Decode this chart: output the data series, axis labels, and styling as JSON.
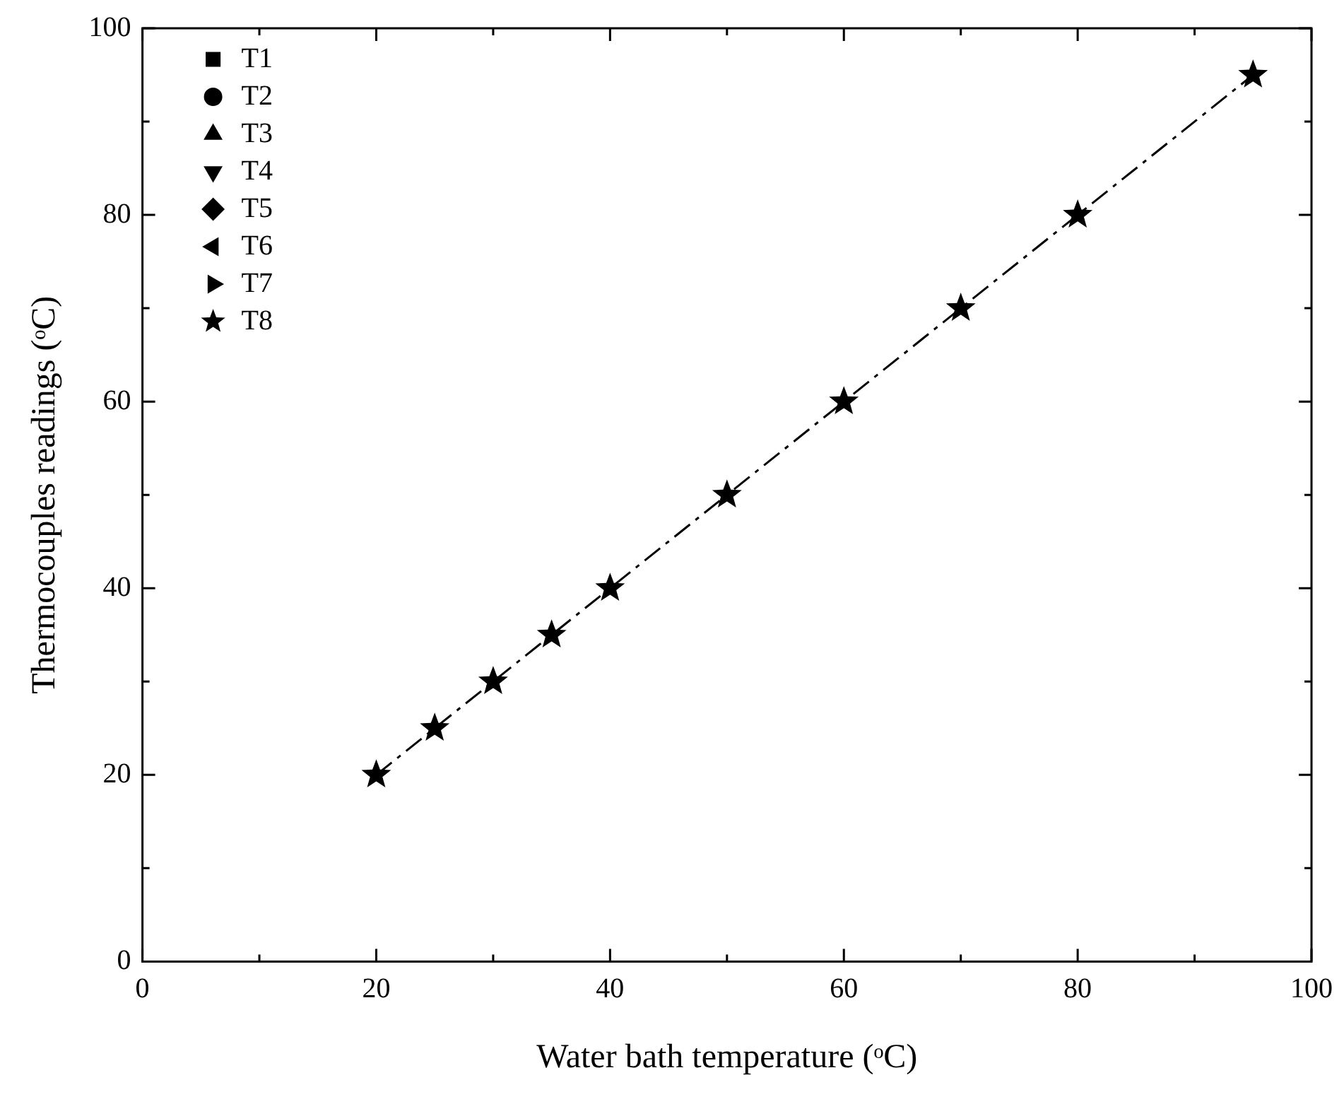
{
  "chart_data": {
    "type": "scatter",
    "xlabel": "Water bath temperature (ᵒC)",
    "ylabel": "Thermocouples readings (ᵒC)",
    "x": [
      20,
      25,
      30,
      35,
      40,
      50,
      60,
      70,
      80,
      95
    ],
    "series": [
      {
        "name": "T1",
        "color": "#000000",
        "marker": "square",
        "values": [
          null,
          null,
          null,
          null,
          null,
          null,
          null,
          null,
          null,
          null
        ]
      },
      {
        "name": "T2",
        "color": "#000000",
        "marker": "circle",
        "values": [
          null,
          null,
          null,
          null,
          null,
          null,
          null,
          null,
          null,
          null
        ]
      },
      {
        "name": "T3",
        "color": "#000000",
        "marker": "triangle",
        "values": [
          null,
          null,
          null,
          null,
          null,
          null,
          null,
          null,
          null,
          null
        ]
      },
      {
        "name": "T4",
        "color": "#000000",
        "marker": "triangle-down",
        "values": [
          null,
          null,
          null,
          null,
          null,
          null,
          null,
          null,
          null,
          null
        ]
      },
      {
        "name": "T5",
        "color": "#000000",
        "marker": "diamond",
        "values": [
          null,
          null,
          null,
          null,
          null,
          null,
          null,
          null,
          null,
          null
        ]
      },
      {
        "name": "T6",
        "color": "#000000",
        "marker": "triangle-left",
        "values": [
          null,
          null,
          null,
          null,
          null,
          null,
          null,
          null,
          null,
          null
        ]
      },
      {
        "name": "T7",
        "color": "#000000",
        "marker": "triangle-right",
        "values": [
          null,
          null,
          null,
          null,
          null,
          null,
          null,
          null,
          null,
          null
        ]
      },
      {
        "name": "T8",
        "type": "line",
        "color": "#000000",
        "marker": "star",
        "line_style": "dashed",
        "values": [
          20,
          25,
          30,
          35,
          40,
          50,
          60,
          70,
          80,
          95
        ]
      }
    ],
    "xlim": [
      0,
      100
    ],
    "xticks": [
      0,
      20,
      40,
      60,
      80,
      100
    ],
    "ylim": [
      0,
      100
    ],
    "yticks": [
      0,
      20,
      40,
      60,
      80,
      100
    ],
    "grid": false,
    "legend": "top left"
  }
}
